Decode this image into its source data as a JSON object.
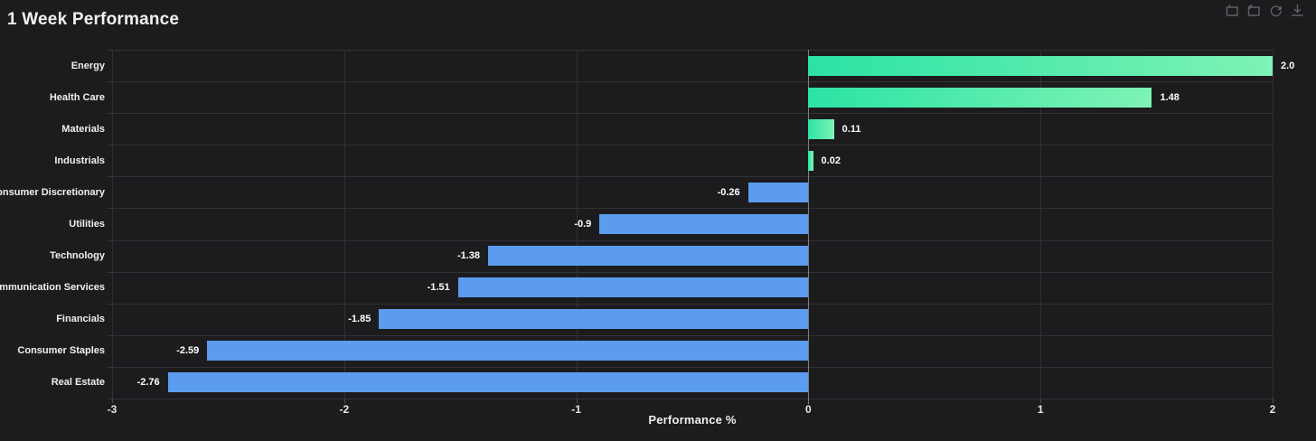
{
  "header": {
    "title": "1 Week Performance"
  },
  "toolbar": {
    "icons": [
      {
        "name": "box-zoom-icon",
        "tooltip": "Zoom"
      },
      {
        "name": "zoom-reset-icon",
        "tooltip": "Zoom Reset"
      },
      {
        "name": "restore-icon",
        "tooltip": "Restore"
      },
      {
        "name": "save-image-icon",
        "tooltip": "Save as Image"
      }
    ]
  },
  "chart_data": {
    "type": "bar",
    "orientation": "horizontal",
    "title": "1 Week Performance",
    "xlabel": "Performance %",
    "categories": [
      "Energy",
      "Health Care",
      "Materials",
      "Industrials",
      "Consumer Discretionary",
      "Utilities",
      "Technology",
      "Communication Services",
      "Financials",
      "Consumer Staples",
      "Real Estate"
    ],
    "values": [
      2.0,
      1.48,
      0.11,
      0.02,
      -0.26,
      -0.9,
      -1.38,
      -1.51,
      -1.85,
      -2.59,
      -2.76
    ],
    "value_labels": [
      "2.0",
      "1.48",
      "0.11",
      "0.02",
      "-0.26",
      "-0.9",
      "-1.38",
      "-1.51",
      "-1.85",
      "-2.59",
      "-2.76"
    ],
    "xlim": [
      -3,
      2
    ],
    "x_ticks": [
      "-3",
      "-2",
      "-1",
      "0",
      "1",
      "2"
    ],
    "grid": true,
    "legend": "none",
    "colors": {
      "positive_gradient_start": "#2be3a4",
      "positive_gradient_end": "#7ef3b5",
      "negative": "#5b9cee",
      "background": "#1c1c1e",
      "gridline": "#303034",
      "zero_line": "#7d7d82",
      "label_text": "#ffffff"
    }
  }
}
